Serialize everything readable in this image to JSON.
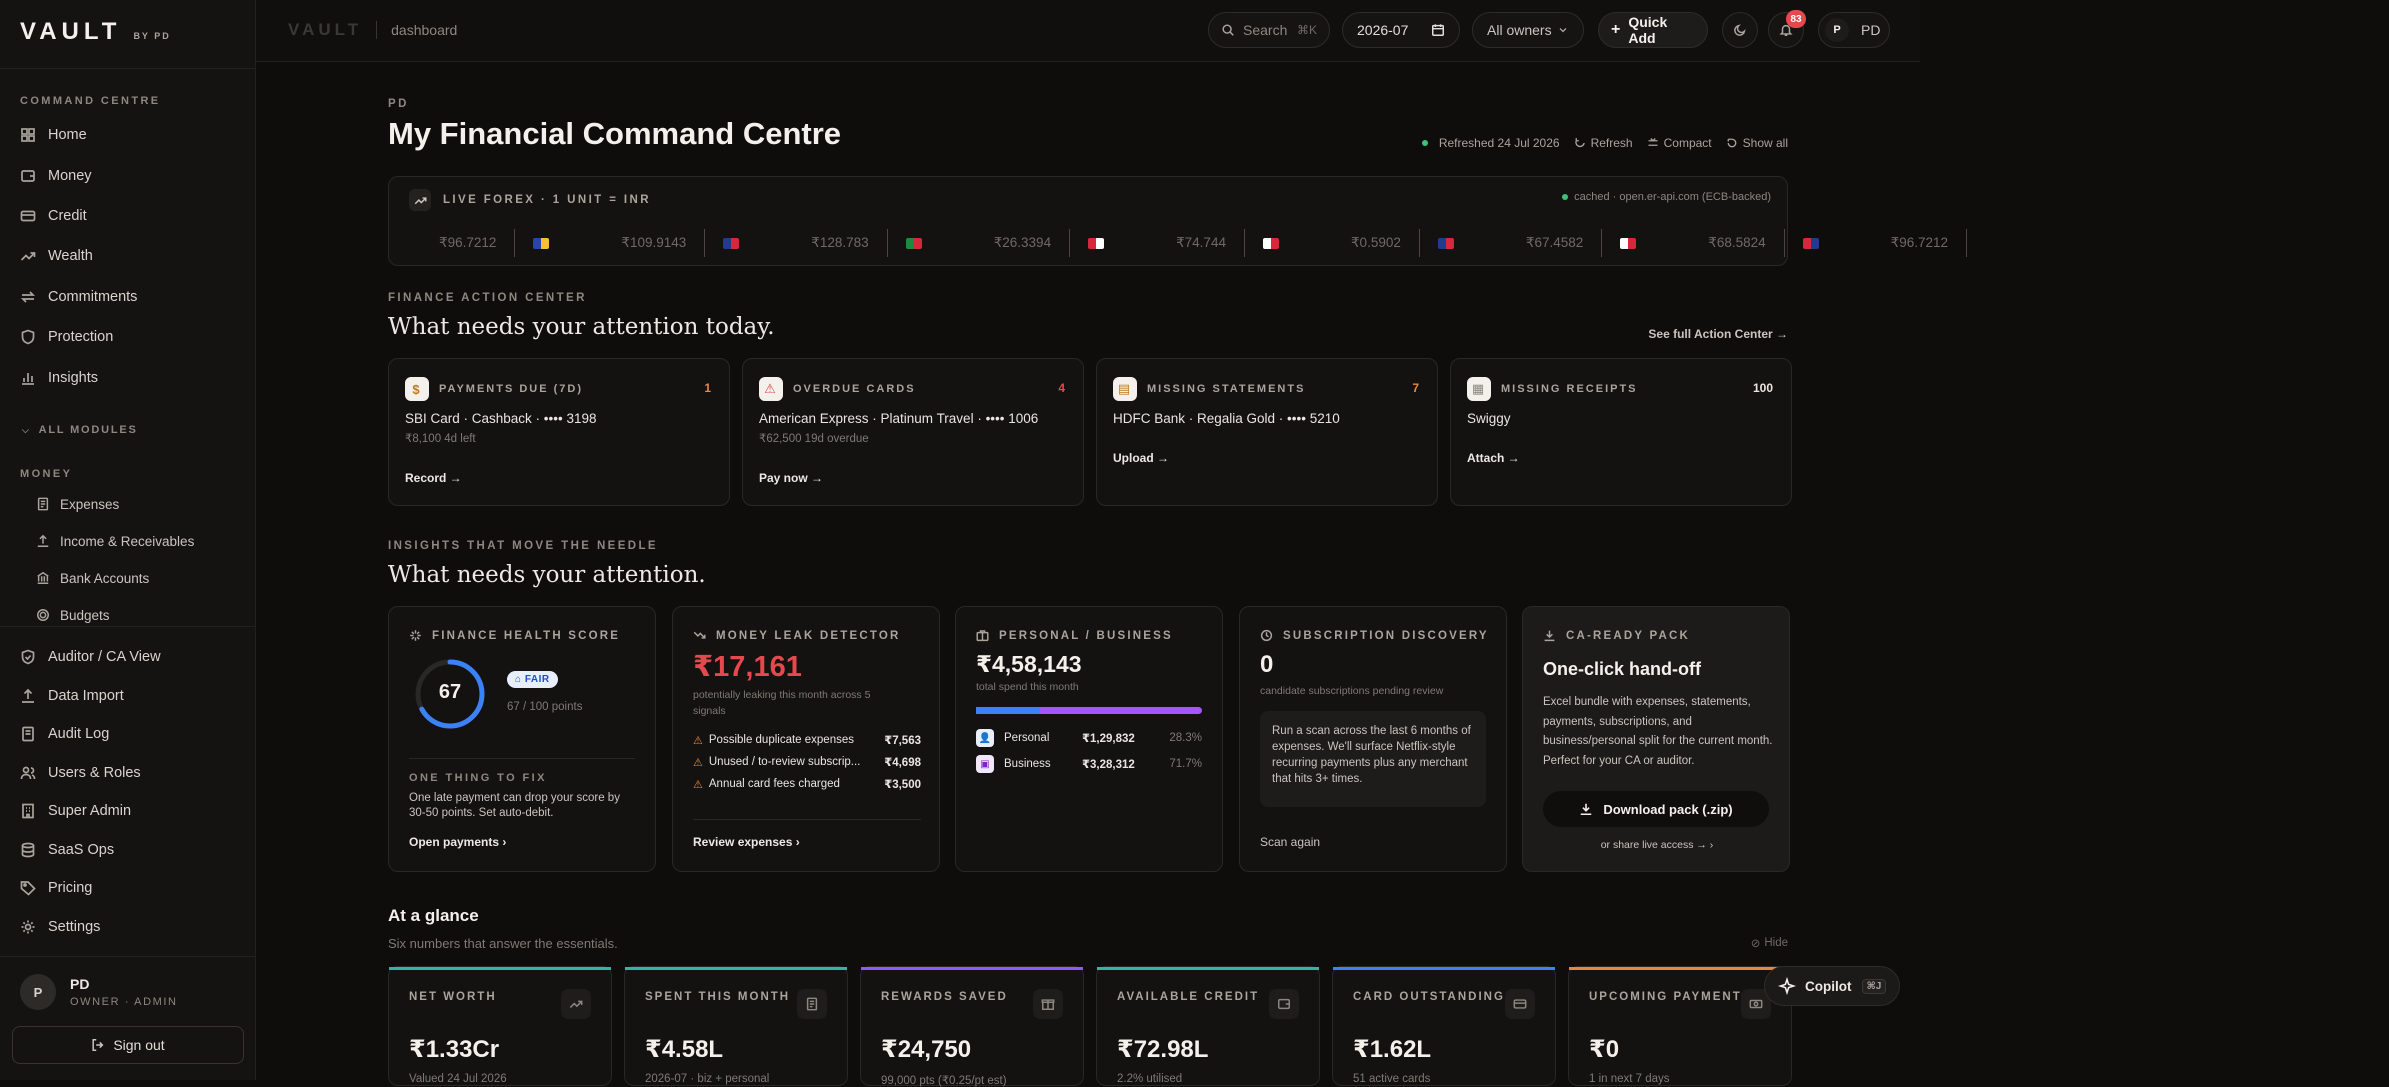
{
  "brand": {
    "logo": "VAULT",
    "by": "BY PD"
  },
  "sidebar": {
    "section1": "COMMAND CENTRE",
    "items": [
      {
        "label": "Home",
        "icon": "grid-icon"
      },
      {
        "label": "Money",
        "icon": "wallet-icon"
      },
      {
        "label": "Credit",
        "icon": "card-icon"
      },
      {
        "label": "Wealth",
        "icon": "trend-icon"
      },
      {
        "label": "Commitments",
        "icon": "repeat-icon"
      },
      {
        "label": "Protection",
        "icon": "shield-icon"
      },
      {
        "label": "Insights",
        "icon": "bar-chart-icon"
      }
    ],
    "all_modules": "ALL MODULES",
    "money_section": "MONEY",
    "money_items": [
      {
        "label": "Expenses",
        "icon": "receipt-icon"
      },
      {
        "label": "Income & Receivables",
        "icon": "upload-icon"
      },
      {
        "label": "Bank Accounts",
        "icon": "bank-icon"
      },
      {
        "label": "Budgets",
        "icon": "target-icon"
      }
    ],
    "admin_items": [
      {
        "label": "Auditor / CA View",
        "icon": "shield-check-icon"
      },
      {
        "label": "Data Import",
        "icon": "upload-icon"
      },
      {
        "label": "Audit Log",
        "icon": "log-icon"
      },
      {
        "label": "Users & Roles",
        "icon": "users-icon"
      },
      {
        "label": "Super Admin",
        "icon": "building-icon"
      },
      {
        "label": "SaaS Ops",
        "icon": "database-icon"
      },
      {
        "label": "Pricing",
        "icon": "tag-icon"
      },
      {
        "label": "Settings",
        "icon": "gear-icon"
      }
    ],
    "user": {
      "initial": "P",
      "name": "PD",
      "role": "OWNER · ADMIN"
    },
    "signout": "Sign out"
  },
  "topbar": {
    "ghost": "VAULT",
    "crumb": "dashboard",
    "search": "Search",
    "search_kbd": "⌘K",
    "month": "2026-07",
    "owners": "All owners",
    "quick_add": "Quick Add",
    "notif_count": "83",
    "user_initial": "P",
    "user_name": "PD"
  },
  "header": {
    "eyebrow": "PD",
    "title": "My Financial Command Centre",
    "refreshed": "Refreshed 24 Jul 2026",
    "refresh": "Refresh",
    "compact": "Compact",
    "show_all": "Show all"
  },
  "forex": {
    "title": "LIVE FOREX · 1 UNIT = INR",
    "source": "cached · open.er-api.com (ECB-backed)",
    "rates": [
      {
        "flag": "",
        "value": "₹96.7212",
        "colors": []
      },
      {
        "flag": "eu-flag-icon",
        "value": "₹109.9143",
        "colors": [
          "#2a45a8",
          "#f2c230"
        ]
      },
      {
        "flag": "uk-flag-icon",
        "value": "₹128.783",
        "colors": [
          "#233b8f",
          "#d6283a"
        ]
      },
      {
        "flag": "ae-flag-icon",
        "value": "₹26.3394",
        "colors": [
          "#1f8a3e",
          "#d6283a"
        ]
      },
      {
        "flag": "sg-flag-icon",
        "value": "₹74.744",
        "colors": [
          "#d6283a",
          "#ffffff"
        ]
      },
      {
        "flag": "jp-flag-icon",
        "value": "₹0.5902",
        "colors": [
          "#ffffff",
          "#d6283a"
        ]
      },
      {
        "flag": "au-flag-icon",
        "value": "₹67.4582",
        "colors": [
          "#233b8f",
          "#d6283a"
        ]
      },
      {
        "flag": "ca-flag-icon",
        "value": "₹68.5824",
        "colors": [
          "#ffffff",
          "#d6283a"
        ]
      },
      {
        "flag": "us-flag-icon",
        "value": "₹96.7212",
        "colors": [
          "#d6283a",
          "#233b8f"
        ]
      }
    ]
  },
  "action": {
    "eyebrow": "FINANCE ACTION CENTER",
    "title": "What needs your attention today.",
    "see_all": "See full Action Center →",
    "cards": [
      {
        "label": "PAYMENTS DUE (7D)",
        "count": "1",
        "count_color": "#e8883a",
        "icon": "$",
        "icon_color": "#c07a1c",
        "line1": "SBI Card · Cashback · •••• 3198",
        "line2": "₹8,100   4d left",
        "action": "Record →"
      },
      {
        "label": "OVERDUE CARDS",
        "count": "4",
        "count_color": "#e5484d",
        "icon": "⚠",
        "icon_color": "#e5484d",
        "line1": "American Express · Platinum Travel · •••• 1006",
        "line2": "₹62,500   19d overdue",
        "action": "Pay now →"
      },
      {
        "label": "MISSING STATEMENTS",
        "count": "7",
        "count_color": "#e8883a",
        "icon": "▤",
        "icon_color": "#c07a1c",
        "line1": "HDFC Bank · Regalia Gold · •••• 5210",
        "line2": "",
        "action": "Upload →"
      },
      {
        "label": "MISSING RECEIPTS",
        "count": "100",
        "count_color": "#e9e6e1",
        "icon": "▦",
        "icon_color": "#8c877f",
        "line1": "Swiggy",
        "line2": "",
        "action": "Attach →"
      }
    ]
  },
  "insights": {
    "eyebrow": "INSIGHTS THAT MOVE THE NEEDLE",
    "title": "What needs your attention.",
    "health": {
      "label": "FINANCE HEALTH SCORE",
      "score": "67",
      "score_fraction": 0.67,
      "badge": "FAIR",
      "points": "67 / 100 points",
      "fix_label": "ONE THING TO FIX",
      "fix_text": "One late payment can drop your score by 30-50 points. Set auto-debit.",
      "link": "Open payments  ›"
    },
    "leak": {
      "label": "MONEY LEAK DETECTOR",
      "amount": "₹17,161",
      "sub": "potentially leaking this month across 5 signals",
      "rows": [
        {
          "label": "Possible duplicate expenses",
          "value": "₹7,563"
        },
        {
          "label": "Unused / to-review subscrip...",
          "value": "₹4,698"
        },
        {
          "label": "Annual card fees charged",
          "value": "₹3,500"
        }
      ],
      "link": "Review expenses  ›"
    },
    "split": {
      "label": "PERSONAL / BUSINESS",
      "amount": "₹4,58,143",
      "sub": "total spend this month",
      "personal_fraction": 0.283,
      "rows": [
        {
          "label": "Personal",
          "value": "₹1,29,832",
          "pct": "28.3%"
        },
        {
          "label": "Business",
          "value": "₹3,28,312",
          "pct": "71.7%"
        }
      ]
    },
    "subs": {
      "label": "SUBSCRIPTION DISCOVERY",
      "count": "0",
      "sub": "candidate subscriptions pending review",
      "body": "Run a scan across the last 6 months of expenses. We'll surface Netflix-style recurring payments plus any merchant that hits 3+ times.",
      "link": "Scan again"
    },
    "ca": {
      "label": "CA-READY PACK",
      "title": "One-click hand-off",
      "body": "Excel bundle with expenses, statements, payments, subscriptions, and business/personal split for the current month. Perfect for your CA or auditor.",
      "button": "Download pack (.zip)",
      "share": "or share live access → ›"
    }
  },
  "glance": {
    "title": "At a glance",
    "sub": "Six numbers that answer the essentials.",
    "hide": "Hide",
    "cards": [
      {
        "label": "NET WORTH",
        "value": "₹1.33Cr",
        "sub": "Valued 24 Jul 2026",
        "color": "#2fb5a0",
        "icon": "trend-icon"
      },
      {
        "label": "SPENT THIS MONTH",
        "value": "₹4.58L",
        "sub": "2026-07 · biz + personal",
        "color": "#2fb5a0",
        "icon": "receipt-icon"
      },
      {
        "label": "REWARDS SAVED",
        "value": "₹24,750",
        "sub": "99,000 pts (₹0.25/pt est)",
        "color": "#8b5cf6",
        "icon": "gift-icon"
      },
      {
        "label": "AVAILABLE CREDIT",
        "value": "₹72.98L",
        "sub": "2.2% utilised",
        "color": "#2fb5a0",
        "icon": "wallet-icon"
      },
      {
        "label": "CARD OUTSTANDING",
        "value": "₹1.62L",
        "sub": "51 active cards",
        "color": "#3b82f6",
        "icon": "card-icon"
      },
      {
        "label": "UPCOMING PAYMENTS",
        "value": "₹0",
        "sub": "1 in next 7 days",
        "color": "#e8883a",
        "icon": "money-icon"
      }
    ]
  },
  "copilot": {
    "label": "Copilot",
    "kbd": "⌘J"
  }
}
